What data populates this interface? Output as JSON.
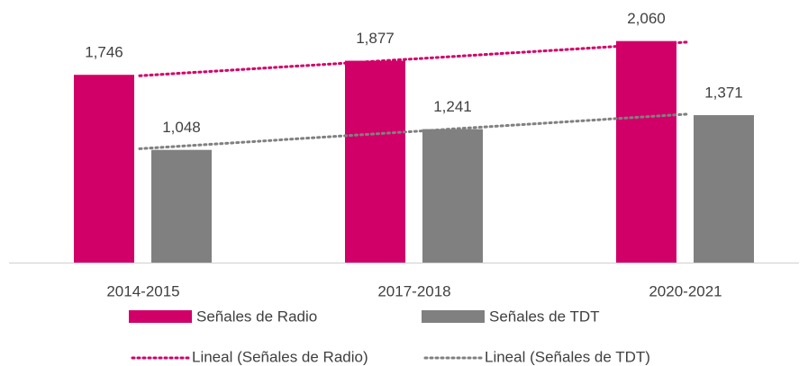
{
  "chart_data": {
    "type": "bar",
    "categories": [
      "2014-2015",
      "2017-2018",
      "2020-2021"
    ],
    "series": [
      {
        "name": "Señales de Radio",
        "color": "#d10069",
        "values": [
          1746,
          1877,
          2060
        ],
        "value_labels": [
          "1,746",
          "1,877",
          "2,060"
        ],
        "trendline": {
          "name": "Lineal (Señales de Radio)",
          "color": "#d10069",
          "style": "dotted"
        }
      },
      {
        "name": "Señales de TDT",
        "color": "#808080",
        "values": [
          1048,
          1241,
          1371
        ],
        "value_labels": [
          "1,048",
          "1,241",
          "1,371"
        ],
        "trendline": {
          "name": "Lineal (Señales de TDT)",
          "color": "#808080",
          "style": "dotted"
        }
      }
    ],
    "ylim": [
      0,
      2400
    ],
    "legend": "bottom"
  }
}
